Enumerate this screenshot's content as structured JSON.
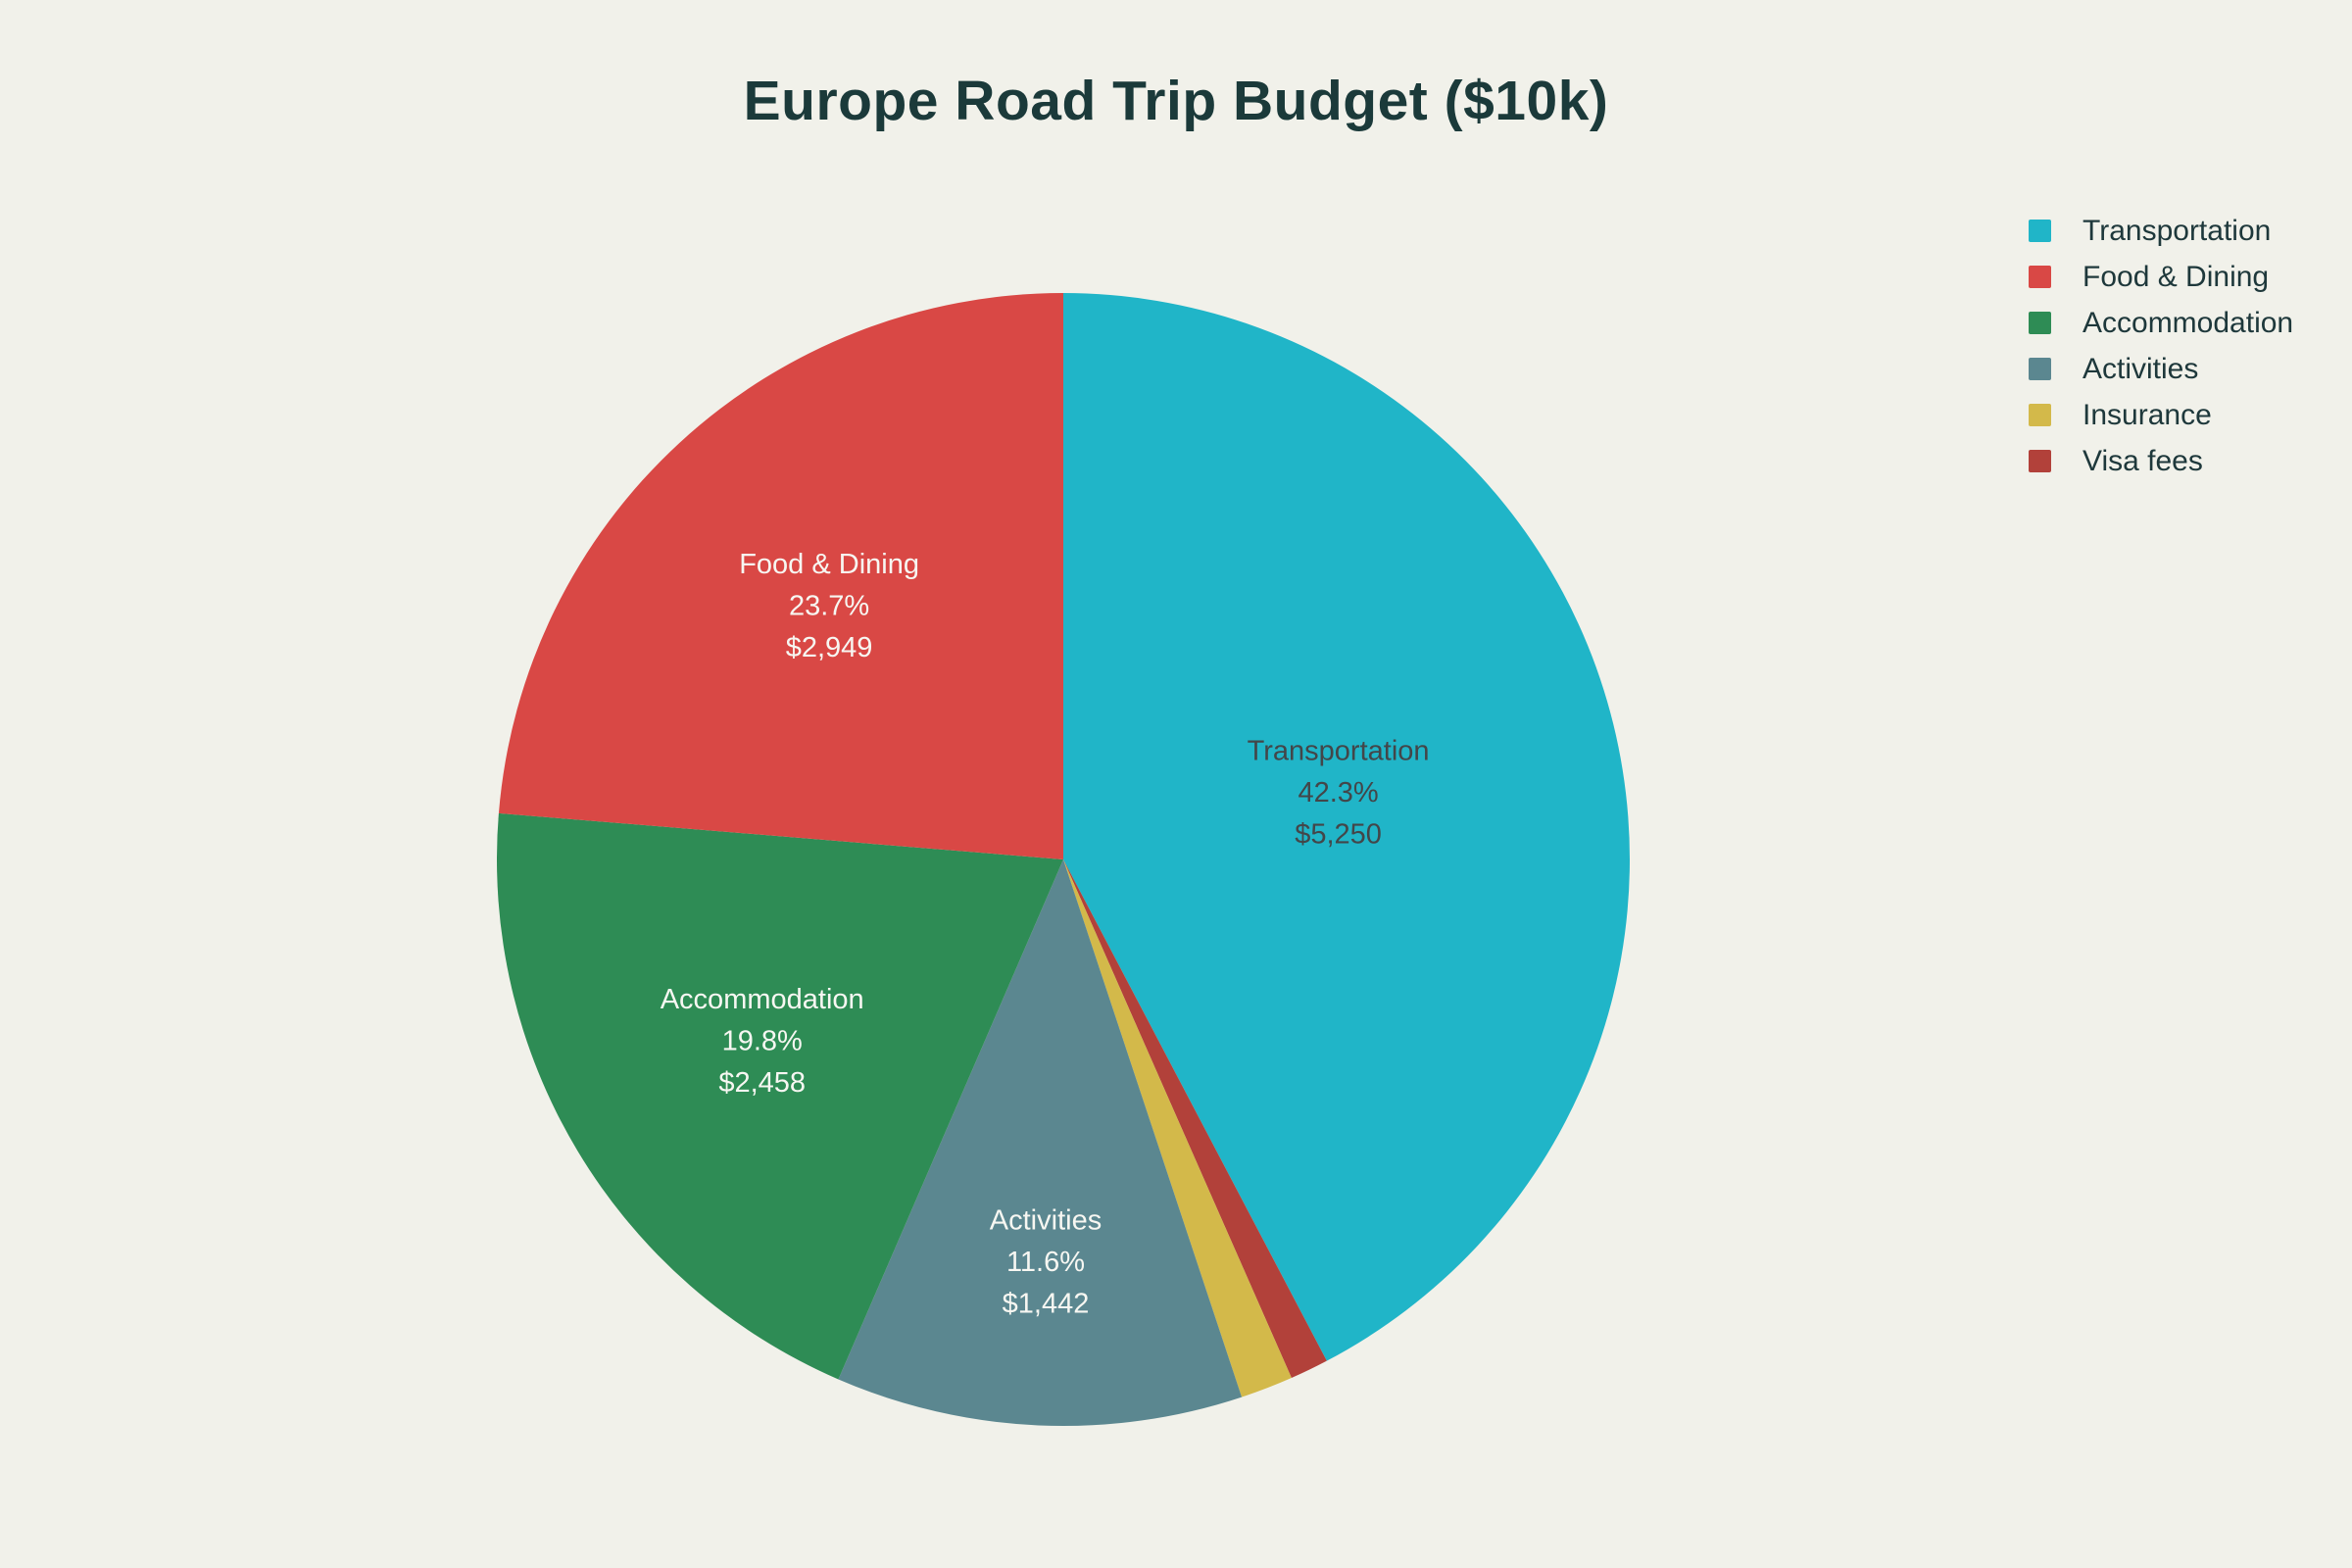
{
  "page": {
    "background": "#f1f1ea"
  },
  "chart_data": {
    "type": "pie",
    "title": "Europe Road Trip Budget ($10k)",
    "title_color": "#1b3a3a",
    "legend_position": "right",
    "legend_text_color": "#1e383b",
    "direction": "clockwise",
    "start_angle_deg": 0,
    "slices": [
      {
        "label": "Transportation",
        "pct": 42.3,
        "pct_label": "42.3%",
        "amount": 5250,
        "amount_label": "$5,250",
        "color": "#20b5c8",
        "label_color": "#434649",
        "label_r": 0.5
      },
      {
        "label": "Food & Dining",
        "pct": 23.7,
        "pct_label": "23.7%",
        "amount": 2949,
        "amount_label": "$2,949",
        "color": "#d94845",
        "label_color": "#f7f7f2",
        "label_r": 0.61
      },
      {
        "label": "Accommodation",
        "pct": 19.8,
        "pct_label": "19.8%",
        "amount": 2458,
        "amount_label": "$2,458",
        "color": "#2e8c55",
        "label_color": "#f7f7f2",
        "label_r": 0.62
      },
      {
        "label": "Activities",
        "pct": 11.6,
        "pct_label": "11.6%",
        "amount": 1442,
        "amount_label": "$1,442",
        "color": "#5b8790",
        "label_color": "#f7f7f2",
        "label_r": 0.71
      },
      {
        "label": "Insurance",
        "pct": 1.5,
        "pct_label": null,
        "amount": null,
        "amount_label": null,
        "color": "#d3b94a",
        "label_color": null,
        "label_r": null
      },
      {
        "label": "Visa fees",
        "pct": 1.1,
        "pct_label": null,
        "amount": null,
        "amount_label": null,
        "color": "#b2413a",
        "label_color": null,
        "label_r": null
      }
    ],
    "draw_order": [
      0,
      5,
      4,
      3,
      2,
      1
    ]
  }
}
